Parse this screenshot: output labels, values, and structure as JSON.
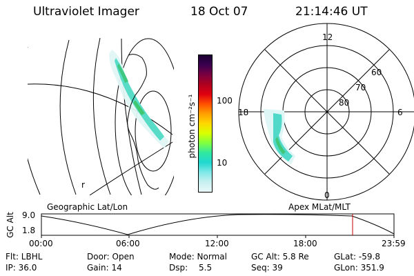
{
  "header": {
    "title": "Ultraviolet Imager",
    "date": "18 Oct 07",
    "time": "21:14:46 UT"
  },
  "left_map": {
    "caption": "Geographic Lat/Lon",
    "stray_char": "r"
  },
  "colorbar": {
    "units_label": "photon cm⁻²s⁻¹",
    "ticks": [
      "100",
      "10"
    ],
    "colors": [
      "#1a0030",
      "#3a0050",
      "#7a0040",
      "#b00020",
      "#e00010",
      "#ff5000",
      "#ffa000",
      "#ffd800",
      "#d8ff00",
      "#80ff40",
      "#30e8a0",
      "#20d8d0",
      "#80e8e8",
      "#c8f0f0",
      "#e8f8f8"
    ]
  },
  "polar_plot": {
    "caption": "Apex MLat/MLT",
    "mlt_labels": {
      "top": "12",
      "right": "6",
      "bottom": "0",
      "left": "18"
    },
    "lat_labels": [
      "60",
      "70",
      "80"
    ]
  },
  "timeline": {
    "y_axis_label": "GC Alt",
    "y_ticks": [
      "9.0",
      "1.8"
    ],
    "x_ticks": [
      "00:00",
      "06:00",
      "12:00",
      "18:00",
      "23:59"
    ],
    "marker_color": "#c00000"
  },
  "info": {
    "flt": "Flt: LBHL",
    "ip": "IP: 36.0",
    "door": "Door: Open",
    "gain": "Gain: 14",
    "mode": "Mode: Normal",
    "dsp_label": "Dsp:",
    "dsp_value": "5.5",
    "gc_alt": "GC Alt: 5.8 Re",
    "seq": "Seq: 39",
    "glat": "GLat: -59.8",
    "glon": "GLon: 351.9"
  }
}
